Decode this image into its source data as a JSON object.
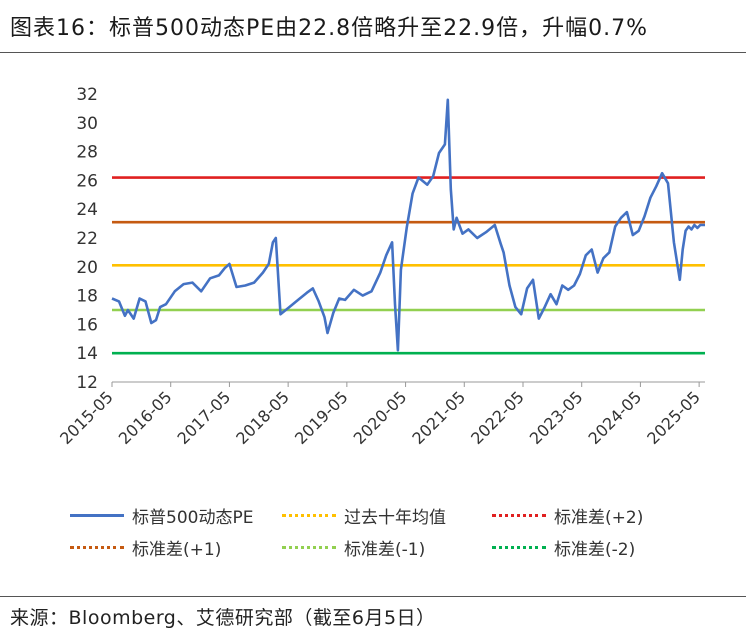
{
  "header": {
    "title": "图表16：标普500动态PE由22.8倍略升至22.9倍，升幅0.7%"
  },
  "footer": {
    "source": "来源：Bloomberg、艾德研究部（截至6月5日）"
  },
  "chart_data": {
    "type": "line",
    "title": "图表16：标普500动态PE由22.8倍略升至22.9倍，升幅0.7%",
    "xlabel": "",
    "ylabel": "",
    "ylim": [
      12,
      32
    ],
    "yticks": [
      12,
      14,
      16,
      18,
      20,
      22,
      24,
      26,
      28,
      30,
      32
    ],
    "xlim": [
      2015.33,
      2025.43
    ],
    "xtick_labels": [
      "2015-05",
      "2016-05",
      "2017-05",
      "2018-05",
      "2019-05",
      "2020-05",
      "2021-05",
      "2022-05",
      "2023-05",
      "2024-05",
      "2025-05"
    ],
    "xtick_values": [
      2015.33,
      2016.33,
      2017.33,
      2018.33,
      2019.33,
      2020.33,
      2021.33,
      2022.33,
      2023.33,
      2024.33,
      2025.33
    ],
    "grid": false,
    "legend_position": "bottom",
    "series": [
      {
        "name": "标普500动态PE",
        "color": "#4472c4",
        "x": [
          2015.33,
          2015.45,
          2015.55,
          2015.6,
          2015.7,
          2015.8,
          2015.9,
          2016.0,
          2016.08,
          2016.15,
          2016.25,
          2016.4,
          2016.55,
          2016.7,
          2016.85,
          2017.0,
          2017.15,
          2017.25,
          2017.33,
          2017.45,
          2017.6,
          2017.75,
          2017.9,
          2018.0,
          2018.07,
          2018.12,
          2018.2,
          2018.35,
          2018.5,
          2018.65,
          2018.75,
          2018.85,
          2018.95,
          2019.0,
          2019.1,
          2019.2,
          2019.3,
          2019.45,
          2019.6,
          2019.75,
          2019.9,
          2020.0,
          2020.1,
          2020.15,
          2020.2,
          2020.25,
          2020.35,
          2020.45,
          2020.55,
          2020.7,
          2020.8,
          2020.9,
          2021.0,
          2021.05,
          2021.1,
          2021.15,
          2021.2,
          2021.3,
          2021.4,
          2021.55,
          2021.7,
          2021.85,
          2021.95,
          2022.0,
          2022.1,
          2022.2,
          2022.3,
          2022.4,
          2022.5,
          2022.6,
          2022.7,
          2022.8,
          2022.9,
          2023.0,
          2023.1,
          2023.2,
          2023.3,
          2023.4,
          2023.5,
          2023.6,
          2023.7,
          2023.8,
          2023.9,
          2024.0,
          2024.1,
          2024.2,
          2024.3,
          2024.4,
          2024.5,
          2024.6,
          2024.7,
          2024.8,
          2024.9,
          2025.0,
          2025.05,
          2025.1,
          2025.15,
          2025.2,
          2025.25,
          2025.3,
          2025.35,
          2025.43
        ],
        "values": [
          17.8,
          17.6,
          16.6,
          17.0,
          16.4,
          17.8,
          17.6,
          16.1,
          16.3,
          17.2,
          17.4,
          18.3,
          18.8,
          18.9,
          18.3,
          19.2,
          19.4,
          19.9,
          20.2,
          18.6,
          18.7,
          18.9,
          19.6,
          20.2,
          21.7,
          22.0,
          16.7,
          17.2,
          17.7,
          18.2,
          18.5,
          17.6,
          16.5,
          15.4,
          16.8,
          17.8,
          17.7,
          18.4,
          18.0,
          18.3,
          19.6,
          20.8,
          21.7,
          17.4,
          14.2,
          19.8,
          22.7,
          25.1,
          26.2,
          25.7,
          26.3,
          27.9,
          28.5,
          31.6,
          25.4,
          22.6,
          23.4,
          22.3,
          22.6,
          22.0,
          22.4,
          22.9,
          21.6,
          21.0,
          18.7,
          17.2,
          16.7,
          18.5,
          19.1,
          16.4,
          17.2,
          18.1,
          17.4,
          18.7,
          18.4,
          18.7,
          19.5,
          20.8,
          21.2,
          19.6,
          20.6,
          21.0,
          22.8,
          23.4,
          23.8,
          22.2,
          22.5,
          23.5,
          24.8,
          25.6,
          26.5,
          25.8,
          21.7,
          19.1,
          21.2,
          22.5,
          22.8,
          22.6,
          22.9,
          22.7,
          22.9,
          22.9
        ]
      },
      {
        "name": "过去十年均值",
        "color": "#ffc000",
        "style": "dotted",
        "value": 20.1
      },
      {
        "name": "标准差(+2)",
        "color": "#e02020",
        "style": "dotted",
        "value": 26.2
      },
      {
        "name": "标准差(+1)",
        "color": "#c55a11",
        "style": "dotted",
        "value": 23.1
      },
      {
        "name": "标准差(-1)",
        "color": "#92d050",
        "style": "dotted",
        "value": 17.0
      },
      {
        "name": "标准差(-2)",
        "color": "#00b050",
        "style": "dotted",
        "value": 14.0
      }
    ]
  }
}
